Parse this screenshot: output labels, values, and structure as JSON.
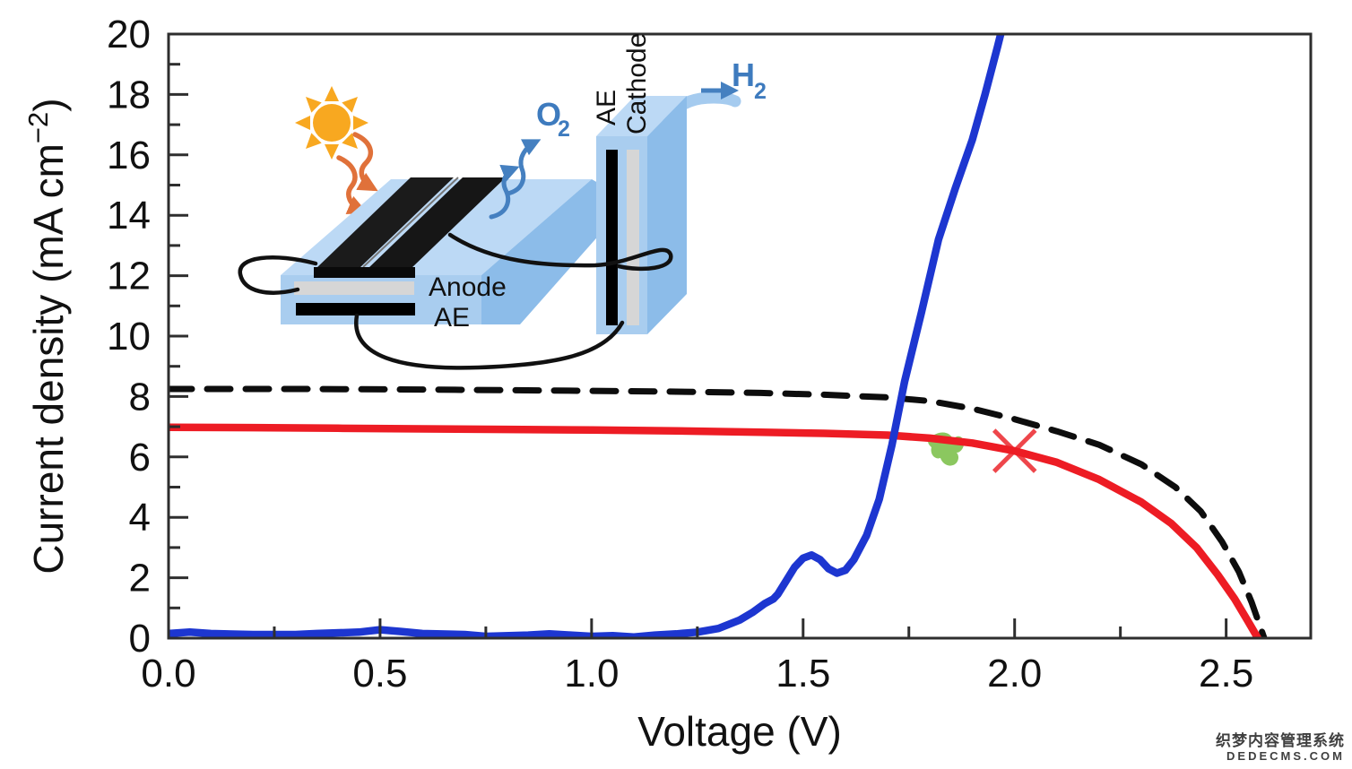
{
  "watermark": {
    "line1": "织梦内容管理系统",
    "line2": "DEDECMS.COM"
  },
  "chart_data": {
    "type": "line",
    "title": "",
    "xlabel": "Voltage (V)",
    "ylabel": "Current density (mA cm−2)",
    "ylabel_parts": {
      "prefix": "Current density (mA cm",
      "sup": "−2",
      "suffix": ")"
    },
    "xlim": [
      0,
      2.7
    ],
    "ylim": [
      0,
      20
    ],
    "grid": false,
    "legend": null,
    "x_ticks": [
      {
        "v": 0.0,
        "label": "0.0"
      },
      {
        "v": 0.5,
        "label": "0.5"
      },
      {
        "v": 1.0,
        "label": "1.0"
      },
      {
        "v": 1.5,
        "label": "1.5"
      },
      {
        "v": 2.0,
        "label": "2.0"
      },
      {
        "v": 2.5,
        "label": "2.5"
      }
    ],
    "x_minor": [
      0.25,
      0.75,
      1.25,
      1.75,
      2.25
    ],
    "y_ticks": [
      {
        "v": 0,
        "label": "0"
      },
      {
        "v": 2,
        "label": "2"
      },
      {
        "v": 4,
        "label": "4"
      },
      {
        "v": 6,
        "label": "6"
      },
      {
        "v": 8,
        "label": "8"
      },
      {
        "v": 10,
        "label": "10"
      },
      {
        "v": 12,
        "label": "12"
      },
      {
        "v": 14,
        "label": "14"
      },
      {
        "v": 16,
        "label": "16"
      },
      {
        "v": 18,
        "label": "18"
      },
      {
        "v": 20,
        "label": "20"
      }
    ],
    "y_minor": [
      1,
      3,
      5,
      7,
      9,
      11,
      13,
      15,
      17,
      19
    ],
    "series": [
      {
        "name": "black-dashed-curve",
        "color": "#0d0d0d",
        "style": "dashed",
        "width": 7,
        "points": [
          [
            0,
            8.25
          ],
          [
            0.3,
            8.25
          ],
          [
            0.6,
            8.23
          ],
          [
            0.9,
            8.2
          ],
          [
            1.2,
            8.16
          ],
          [
            1.4,
            8.12
          ],
          [
            1.55,
            8.06
          ],
          [
            1.7,
            7.97
          ],
          [
            1.8,
            7.85
          ],
          [
            1.9,
            7.6
          ],
          [
            2.0,
            7.25
          ],
          [
            2.1,
            6.85
          ],
          [
            2.2,
            6.4
          ],
          [
            2.3,
            5.75
          ],
          [
            2.38,
            5.0
          ],
          [
            2.44,
            4.2
          ],
          [
            2.49,
            3.2
          ],
          [
            2.53,
            2.2
          ],
          [
            2.56,
            1.2
          ],
          [
            2.58,
            0.4
          ],
          [
            2.59,
            0
          ]
        ]
      },
      {
        "name": "red-solid-curve",
        "color": "#ed1c24",
        "style": "solid",
        "width": 8.5,
        "points": [
          [
            0,
            6.98
          ],
          [
            0.2,
            6.97
          ],
          [
            0.4,
            6.95
          ],
          [
            0.6,
            6.93
          ],
          [
            0.8,
            6.91
          ],
          [
            1.0,
            6.89
          ],
          [
            1.2,
            6.86
          ],
          [
            1.4,
            6.82
          ],
          [
            1.55,
            6.78
          ],
          [
            1.7,
            6.72
          ],
          [
            1.8,
            6.62
          ],
          [
            1.9,
            6.46
          ],
          [
            2.0,
            6.2
          ],
          [
            2.1,
            5.82
          ],
          [
            2.2,
            5.25
          ],
          [
            2.3,
            4.5
          ],
          [
            2.37,
            3.8
          ],
          [
            2.43,
            3.0
          ],
          [
            2.48,
            2.1
          ],
          [
            2.52,
            1.3
          ],
          [
            2.55,
            0.6
          ],
          [
            2.575,
            0
          ]
        ]
      },
      {
        "name": "blue-solid-curve",
        "color": "#1d36d0",
        "style": "solid",
        "width": 8.5,
        "points": [
          [
            0,
            0.15
          ],
          [
            0.05,
            0.2
          ],
          [
            0.1,
            0.15
          ],
          [
            0.2,
            0.12
          ],
          [
            0.3,
            0.12
          ],
          [
            0.35,
            0.15
          ],
          [
            0.45,
            0.2
          ],
          [
            0.5,
            0.28
          ],
          [
            0.55,
            0.22
          ],
          [
            0.6,
            0.15
          ],
          [
            0.7,
            0.12
          ],
          [
            0.75,
            0.06
          ],
          [
            0.85,
            0.1
          ],
          [
            0.9,
            0.14
          ],
          [
            0.95,
            0.1
          ],
          [
            1.0,
            0.06
          ],
          [
            1.05,
            0.08
          ],
          [
            1.1,
            0.04
          ],
          [
            1.15,
            0.1
          ],
          [
            1.2,
            0.14
          ],
          [
            1.25,
            0.2
          ],
          [
            1.3,
            0.32
          ],
          [
            1.35,
            0.6
          ],
          [
            1.38,
            0.85
          ],
          [
            1.41,
            1.15
          ],
          [
            1.43,
            1.3
          ],
          [
            1.44,
            1.45
          ],
          [
            1.46,
            1.9
          ],
          [
            1.48,
            2.35
          ],
          [
            1.5,
            2.65
          ],
          [
            1.52,
            2.75
          ],
          [
            1.54,
            2.6
          ],
          [
            1.56,
            2.3
          ],
          [
            1.58,
            2.15
          ],
          [
            1.6,
            2.25
          ],
          [
            1.62,
            2.6
          ],
          [
            1.65,
            3.4
          ],
          [
            1.68,
            4.6
          ],
          [
            1.71,
            6.4
          ],
          [
            1.74,
            8.5
          ],
          [
            1.78,
            10.8
          ],
          [
            1.82,
            13.2
          ],
          [
            1.86,
            14.9
          ],
          [
            1.9,
            16.5
          ],
          [
            1.93,
            18.0
          ],
          [
            1.96,
            19.6
          ],
          [
            1.985,
            21
          ]
        ]
      }
    ],
    "annotations": [
      {
        "type": "blob",
        "name": "green-operating-region",
        "x": 1.85,
        "y": 6.2,
        "color": "#8bc75f"
      },
      {
        "type": "x-mark",
        "name": "red-x-operating-point",
        "x": 2.0,
        "y": 6.2,
        "color": "#ee464b"
      }
    ]
  },
  "inset": {
    "labels": {
      "anode": "Anode",
      "anode_ae": "AE",
      "cathode_ae": "AE",
      "cathode": "Cathode",
      "o2": "O",
      "o2_sub": "2",
      "h2": "H",
      "h2_sub": "2"
    },
    "colors": {
      "cell_body": "#A9CDEF",
      "cell_top": "#BCD9F5",
      "cell_side": "#8CBCE9",
      "panel": "#1b1b1b",
      "electrode_gray": "#D6D6D6",
      "electrode_black": "#000000",
      "gas_text": "#3E7BBE",
      "gas_arrow": "#4580C0",
      "pipe": "#A5CBEF",
      "sun": "#F8A820",
      "photon_arrow": "#E0713A",
      "wire": "#111111"
    }
  }
}
